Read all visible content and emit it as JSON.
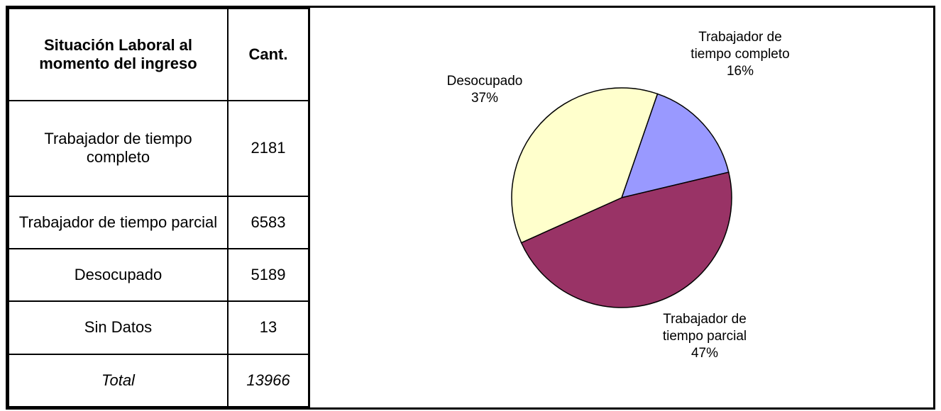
{
  "table": {
    "header": [
      "Situación Laboral al momento del ingreso",
      "Cant."
    ],
    "rows": [
      [
        "Trabajador de tiempo completo",
        "2181"
      ],
      [
        "Trabajador de tiempo parcial",
        "6583"
      ],
      [
        "Desocupado",
        "5189"
      ],
      [
        "Sin Datos",
        "13"
      ]
    ],
    "total": [
      "Total",
      "13966"
    ]
  },
  "chart_data": {
    "type": "pie",
    "categories": [
      "Trabajador de tiempo completo",
      "Trabajador de tiempo parcial",
      "Desocupado"
    ],
    "values": [
      16,
      47,
      37
    ],
    "value_labels": [
      "16%",
      "47%",
      "37%"
    ],
    "colors": [
      "#9999ff",
      "#993366",
      "#ffffcc"
    ]
  }
}
